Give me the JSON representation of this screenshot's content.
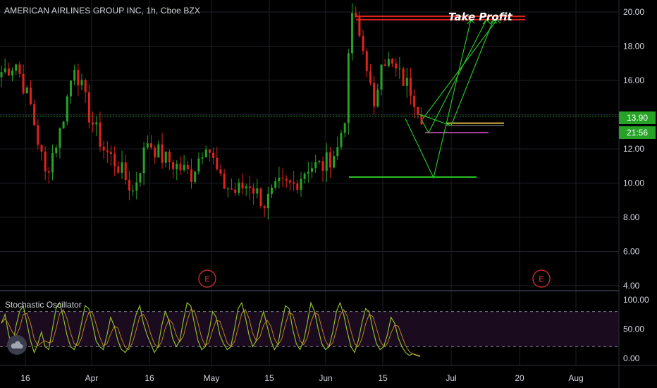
{
  "header": {
    "symbol_title": "AMERICAN AIRLINES GROUP INC, 1h, Cboe BZX"
  },
  "price_tags": {
    "last_price": "13.90",
    "countdown": "21:56"
  },
  "annotations": {
    "take_profit": "Take Profit",
    "earnings_marker": "E"
  },
  "indicator": {
    "name": "Stochastic Oscillator"
  },
  "colors": {
    "background": "#000000",
    "bull": "#26a326",
    "bear": "#e0221c",
    "stoch_k": "#8fbc2b",
    "stoch_d": "#e0a020",
    "price_line": "#26a326",
    "arrow": "#26c126",
    "tp_line": "#e0221c",
    "target_line": "#26c126"
  },
  "chart_data": [
    {
      "type": "candlestick",
      "title": "AMERICAN AIRLINES GROUP INC, 1h, Cboe BZX",
      "x_ticks": [
        "16",
        "Apr",
        "16",
        "May",
        "15",
        "Jun",
        "15",
        "Jul",
        "20",
        "Aug"
      ],
      "y_ticks": [
        4,
        6,
        8,
        10,
        12,
        14,
        16,
        18,
        20
      ],
      "ylim": [
        3.8,
        21.0
      ],
      "current_price": 13.9,
      "anchors": [
        {
          "i": 0,
          "p": 16.5
        },
        {
          "i": 4,
          "p": 17.0
        },
        {
          "i": 8,
          "p": 14.5
        },
        {
          "i": 12,
          "p": 10.5
        },
        {
          "i": 16,
          "p": 13.0
        },
        {
          "i": 20,
          "p": 17.0
        },
        {
          "i": 24,
          "p": 14.0
        },
        {
          "i": 28,
          "p": 12.0
        },
        {
          "i": 32,
          "p": 11.0
        },
        {
          "i": 36,
          "p": 9.5
        },
        {
          "i": 40,
          "p": 12.5
        },
        {
          "i": 44,
          "p": 11.5
        },
        {
          "i": 48,
          "p": 11.0
        },
        {
          "i": 52,
          "p": 10.5
        },
        {
          "i": 56,
          "p": 12.5
        },
        {
          "i": 60,
          "p": 10.0
        },
        {
          "i": 64,
          "p": 9.5
        },
        {
          "i": 68,
          "p": 10.0
        },
        {
          "i": 72,
          "p": 8.8
        },
        {
          "i": 76,
          "p": 9.8
        },
        {
          "i": 80,
          "p": 9.9
        },
        {
          "i": 84,
          "p": 11.0
        },
        {
          "i": 88,
          "p": 11.0
        },
        {
          "i": 92,
          "p": 12.0
        },
        {
          "i": 94,
          "p": 14.0
        },
        {
          "i": 96,
          "p": 20.0
        },
        {
          "i": 98,
          "p": 18.5
        },
        {
          "i": 100,
          "p": 17.0
        },
        {
          "i": 102,
          "p": 14.0
        },
        {
          "i": 104,
          "p": 17.5
        },
        {
          "i": 108,
          "p": 16.5
        },
        {
          "i": 112,
          "p": 15.5
        },
        {
          "i": 115,
          "p": 14.0
        }
      ],
      "levels": [
        {
          "name": "take_profit_upper",
          "price": 19.75,
          "x_range": [
            "Jun",
            "Jul+"
          ]
        },
        {
          "name": "take_profit_lower",
          "price": 19.55,
          "x_range": [
            "Jun",
            "Jul+"
          ]
        },
        {
          "name": "entry_1",
          "price": 13.5
        },
        {
          "name": "entry_2",
          "price": 12.95
        },
        {
          "name": "target_low",
          "price": 10.35
        }
      ],
      "earnings_markers": [
        "May",
        "Jul+"
      ]
    },
    {
      "type": "line",
      "title": "Stochastic Oscillator",
      "y_ticks": [
        0,
        50,
        100
      ],
      "ylim": [
        0,
        100
      ],
      "bands": [
        20,
        80
      ],
      "series": [
        {
          "values": [
            60,
            75,
            40,
            20,
            55,
            80,
            90,
            60,
            30,
            10,
            25,
            45,
            20,
            15,
            50,
            85,
            95,
            70,
            40,
            20,
            15,
            30,
            60,
            90,
            85,
            60,
            30,
            20,
            15,
            40,
            70,
            55,
            30,
            15,
            10,
            20,
            50,
            75,
            90,
            60,
            40,
            25,
            10,
            20,
            55,
            80,
            65,
            35,
            20,
            30,
            65,
            95,
            90,
            60,
            30,
            15,
            20,
            45,
            80,
            70,
            40,
            25,
            15,
            20,
            50,
            85,
            95,
            70,
            40,
            20,
            30,
            60,
            80,
            55,
            30,
            15,
            25,
            60,
            90,
            85,
            50,
            25,
            15,
            30,
            60,
            95,
            80,
            50,
            25,
            15,
            20,
            45,
            80,
            95,
            75,
            45,
            20,
            10,
            30,
            60,
            85,
            80,
            50,
            25,
            15,
            20,
            40,
            70,
            60,
            35,
            20,
            10,
            5,
            8,
            5,
            3
          ]
        }
      ]
    }
  ]
}
